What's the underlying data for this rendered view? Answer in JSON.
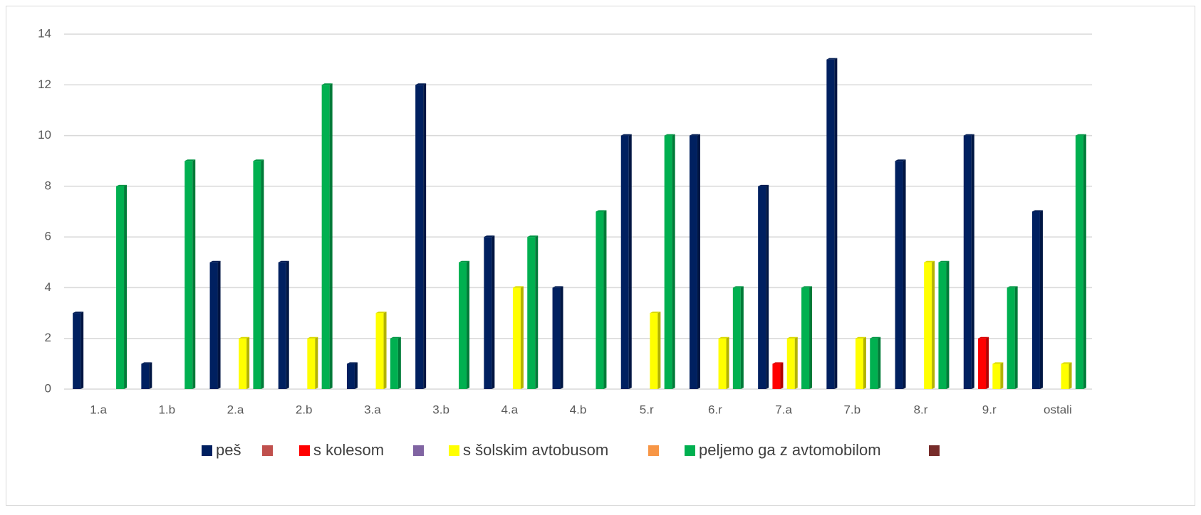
{
  "chart_data": {
    "type": "bar",
    "categories": [
      "1.a",
      "1.b",
      "2.a",
      "2.b",
      "3.a",
      "3.b",
      "4.a",
      "4.b",
      "5.r",
      "6.r",
      "7.a",
      "7.b",
      "8.r",
      "9.r",
      "ostali"
    ],
    "series": [
      {
        "name": "peš",
        "color": "#002060",
        "values": [
          3,
          1,
          5,
          5,
          1,
          12,
          6,
          4,
          10,
          10,
          8,
          13,
          9,
          10,
          7
        ]
      },
      {
        "name": "s kolesom",
        "color": "#ff0000",
        "values": [
          0,
          0,
          0,
          0,
          0,
          0,
          0,
          0,
          0,
          0,
          1,
          0,
          0,
          2,
          0
        ]
      },
      {
        "name": "s šolskim avtobusom",
        "color": "#ffff00",
        "values": [
          0,
          0,
          2,
          2,
          3,
          0,
          4,
          0,
          3,
          2,
          2,
          2,
          5,
          1,
          1
        ]
      },
      {
        "name": "peljemo ga z avtomobilom",
        "color": "#00b050",
        "values": [
          8,
          9,
          9,
          12,
          2,
          5,
          6,
          7,
          10,
          4,
          4,
          2,
          5,
          4,
          10
        ]
      }
    ],
    "ylim": [
      0,
      14
    ],
    "yticks": [
      0,
      2,
      4,
      6,
      8,
      10,
      12,
      14
    ],
    "grid": true,
    "legend": "bottom"
  }
}
